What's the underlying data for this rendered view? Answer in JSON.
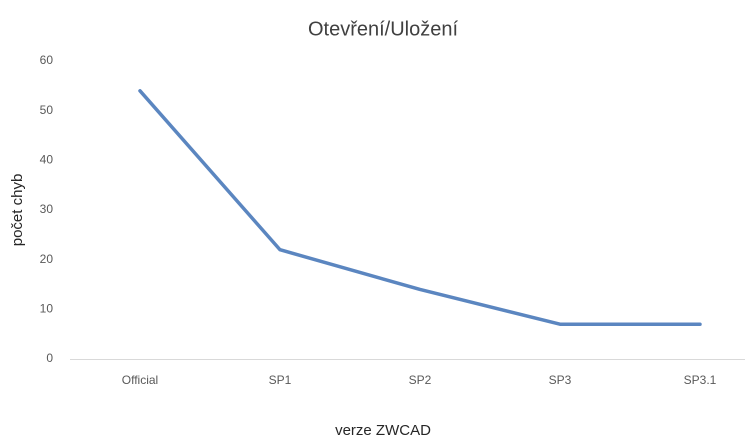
{
  "chart_data": {
    "type": "line",
    "title": "Otevření/Uložení",
    "x_label": "verze ZWCAD",
    "y_label": "počet chyb",
    "categories": [
      "Official",
      "SP1",
      "SP2",
      "SP3",
      "SP3.1"
    ],
    "series": [
      {
        "name": "počet chyb",
        "color": "#5b86c0",
        "values": [
          54,
          22,
          14,
          7,
          7
        ]
      }
    ],
    "ylim": [
      0,
      60
    ],
    "yticks": [
      0,
      10,
      20,
      30,
      40,
      50,
      60
    ],
    "grid": false
  }
}
